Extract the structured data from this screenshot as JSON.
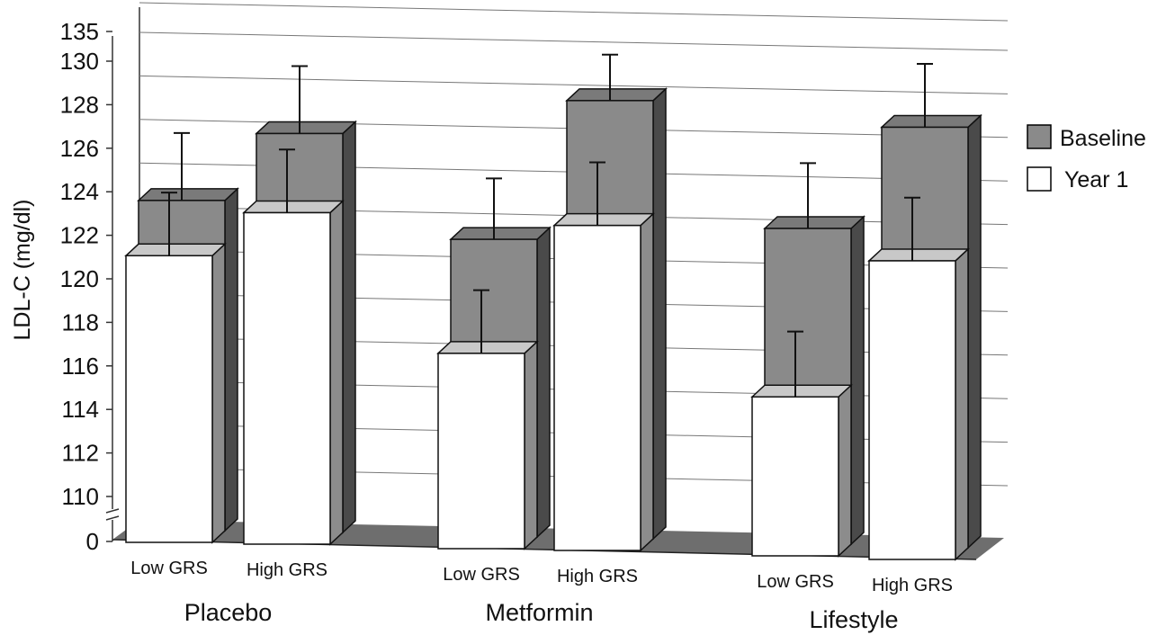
{
  "chart_data": {
    "type": "bar",
    "ylabel": "LDL-C (mg/dl)",
    "yticks": [
      "0",
      "110",
      "112",
      "114",
      "116",
      "118",
      "120",
      "122",
      "124",
      "126",
      "128",
      "130",
      "135"
    ],
    "axis_break": true,
    "grid": true,
    "legend_position": "right",
    "groups": [
      {
        "name": "Placebo",
        "bars": [
          {
            "label": "Low GRS",
            "baseline": 123.6,
            "baseline_err": 3.1,
            "year1": 121.6,
            "year1_err": 2.9
          },
          {
            "label": "High GRS",
            "baseline": 126.7,
            "baseline_err": 3.1,
            "year1": 123.6,
            "year1_err": 2.9
          }
        ]
      },
      {
        "name": "Metformin",
        "bars": [
          {
            "label": "Low GRS",
            "baseline": 121.9,
            "baseline_err": 2.8,
            "year1": 117.2,
            "year1_err": 2.9
          },
          {
            "label": "High GRS",
            "baseline": 128.3,
            "baseline_err": 3.2,
            "year1": 123.1,
            "year1_err": 2.9
          }
        ]
      },
      {
        "name": "Lifestyle",
        "bars": [
          {
            "label": "Low GRS",
            "baseline": 122.5,
            "baseline_err": 3.0,
            "year1": 115.3,
            "year1_err": 3.0
          },
          {
            "label": "High GRS",
            "baseline": 127.2,
            "baseline_err": 3.2,
            "year1": 121.6,
            "year1_err": 2.9
          }
        ]
      }
    ],
    "series": [
      {
        "name": "Baseline",
        "color": "#8a8a8a"
      },
      {
        "name": "Year 1",
        "color": "#ffffff"
      }
    ]
  }
}
